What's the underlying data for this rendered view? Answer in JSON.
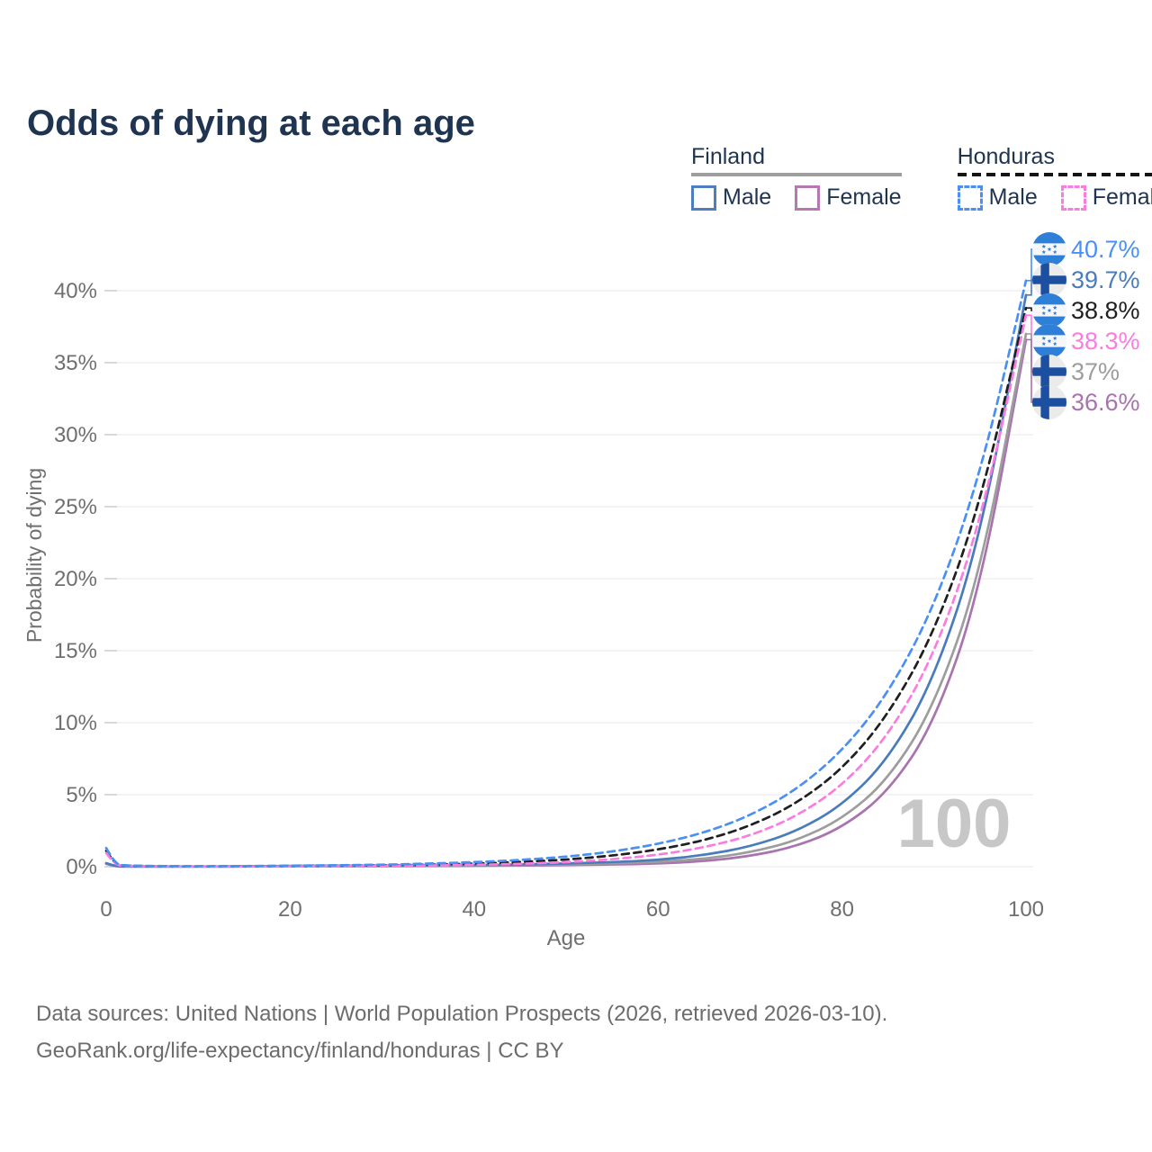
{
  "title": "Odds of dying at each age",
  "legend": {
    "groups": [
      {
        "name": "Finland",
        "line_style": "solid",
        "underline_color": "#9e9e9e",
        "items": [
          {
            "label": "Male",
            "color": "#4d7fbe"
          },
          {
            "label": "Female",
            "color": "#b678b2"
          }
        ]
      },
      {
        "name": "Honduras",
        "line_style": "dashed",
        "underline_color": "#141414",
        "items": [
          {
            "label": "Male",
            "color": "#4a90f4"
          },
          {
            "label": "Female",
            "color": "#fb7ce0"
          }
        ]
      }
    ]
  },
  "chart_data": {
    "type": "line",
    "title": "Odds of dying at each age",
    "xlabel": "Age",
    "ylabel": "Probability of dying",
    "xlim": [
      0,
      100
    ],
    "ylim": [
      0,
      42
    ],
    "x_ticks": [
      0,
      20,
      40,
      60,
      80,
      100
    ],
    "y_ticks": [
      0,
      5,
      10,
      15,
      20,
      25,
      30,
      35,
      40
    ],
    "y_tick_suffix": "%",
    "grid": "horizontal",
    "age_watermark": "100",
    "series": [
      {
        "name": "Honduras Male",
        "country": "honduras",
        "sex": "male",
        "color": "#4a90f4",
        "dashed": true,
        "end_label": "40.7%",
        "flag": "honduras",
        "points": [
          [
            0,
            1.3
          ],
          [
            1,
            0.16
          ],
          [
            2,
            0.09
          ],
          [
            3,
            0.07
          ],
          [
            5,
            0.05
          ],
          [
            10,
            0.03
          ],
          [
            15,
            0.04
          ],
          [
            20,
            0.07
          ],
          [
            25,
            0.1
          ],
          [
            30,
            0.14
          ],
          [
            35,
            0.21
          ],
          [
            40,
            0.31
          ],
          [
            45,
            0.46
          ],
          [
            50,
            0.69
          ],
          [
            55,
            1.04
          ],
          [
            60,
            1.57
          ],
          [
            65,
            2.35
          ],
          [
            70,
            3.54
          ],
          [
            75,
            5.32
          ],
          [
            80,
            8.0
          ],
          [
            85,
            12.0
          ],
          [
            90,
            18.0
          ],
          [
            95,
            27.1
          ],
          [
            100,
            40.7
          ]
        ]
      },
      {
        "name": "Finland Male",
        "country": "finland",
        "sex": "male",
        "color": "#4a7cbc",
        "dashed": false,
        "end_label": "39.7%",
        "flag": "finland",
        "points": [
          [
            0,
            0.25
          ],
          [
            1,
            0.03
          ],
          [
            2,
            0.02
          ],
          [
            3,
            0.01
          ],
          [
            5,
            0.01
          ],
          [
            10,
            0.01
          ],
          [
            15,
            0.02
          ],
          [
            20,
            0.05
          ],
          [
            25,
            0.07
          ],
          [
            30,
            0.08
          ],
          [
            35,
            0.1
          ],
          [
            40,
            0.12
          ],
          [
            45,
            0.16
          ],
          [
            50,
            0.22
          ],
          [
            55,
            0.32
          ],
          [
            60,
            0.46
          ],
          [
            65,
            0.8
          ],
          [
            70,
            1.39
          ],
          [
            75,
            2.43
          ],
          [
            80,
            4.25
          ],
          [
            85,
            7.43
          ],
          [
            90,
            13.0
          ],
          [
            95,
            22.7
          ],
          [
            100,
            39.7
          ]
        ]
      },
      {
        "name": "Honduras Both sexes",
        "country": "honduras",
        "sex": "both",
        "color": "#1f1f1f",
        "dashed": true,
        "end_label": "38.8%",
        "flag": "honduras",
        "points": [
          [
            0,
            1.1
          ],
          [
            1,
            0.13
          ],
          [
            2,
            0.08
          ],
          [
            3,
            0.06
          ],
          [
            5,
            0.04
          ],
          [
            10,
            0.02
          ],
          [
            15,
            0.03
          ],
          [
            20,
            0.05
          ],
          [
            25,
            0.07
          ],
          [
            30,
            0.1
          ],
          [
            35,
            0.14
          ],
          [
            40,
            0.21
          ],
          [
            45,
            0.32
          ],
          [
            50,
            0.49
          ],
          [
            55,
            0.76
          ],
          [
            60,
            1.18
          ],
          [
            65,
            1.82
          ],
          [
            70,
            2.82
          ],
          [
            75,
            4.36
          ],
          [
            80,
            6.75
          ],
          [
            85,
            10.5
          ],
          [
            90,
            16.2
          ],
          [
            95,
            25.1
          ],
          [
            100,
            38.8
          ]
        ]
      },
      {
        "name": "Honduras Female",
        "country": "honduras",
        "sex": "female",
        "color": "#fb7ce0",
        "dashed": true,
        "end_label": "38.3%",
        "flag": "honduras",
        "points": [
          [
            0,
            0.95
          ],
          [
            1,
            0.11
          ],
          [
            2,
            0.06
          ],
          [
            3,
            0.05
          ],
          [
            5,
            0.03
          ],
          [
            10,
            0.02
          ],
          [
            15,
            0.02
          ],
          [
            20,
            0.03
          ],
          [
            25,
            0.05
          ],
          [
            30,
            0.07
          ],
          [
            35,
            0.09
          ],
          [
            40,
            0.13
          ],
          [
            45,
            0.2
          ],
          [
            50,
            0.31
          ],
          [
            55,
            0.51
          ],
          [
            60,
            0.82
          ],
          [
            65,
            1.33
          ],
          [
            70,
            2.14
          ],
          [
            75,
            3.47
          ],
          [
            80,
            5.6
          ],
          [
            85,
            9.06
          ],
          [
            90,
            14.65
          ],
          [
            95,
            23.7
          ],
          [
            100,
            38.3
          ]
        ]
      },
      {
        "name": "Finland Both sexes",
        "country": "finland",
        "sex": "both",
        "color": "#9d9d9d",
        "dashed": false,
        "end_label": "37%",
        "flag": "finland",
        "points": [
          [
            0,
            0.22
          ],
          [
            1,
            0.02
          ],
          [
            2,
            0.01
          ],
          [
            3,
            0.01
          ],
          [
            5,
            0.01
          ],
          [
            10,
            0.01
          ],
          [
            15,
            0.02
          ],
          [
            20,
            0.03
          ],
          [
            25,
            0.04
          ],
          [
            30,
            0.05
          ],
          [
            35,
            0.07
          ],
          [
            40,
            0.09
          ],
          [
            45,
            0.12
          ],
          [
            50,
            0.16
          ],
          [
            55,
            0.23
          ],
          [
            60,
            0.33
          ],
          [
            65,
            0.54
          ],
          [
            70,
            0.99
          ],
          [
            75,
            1.8
          ],
          [
            80,
            3.3
          ],
          [
            85,
            6.03
          ],
          [
            90,
            11.1
          ],
          [
            95,
            20.2
          ],
          [
            100,
            37.0
          ]
        ]
      },
      {
        "name": "Finland Female",
        "country": "finland",
        "sex": "female",
        "color": "#a873ae",
        "dashed": false,
        "end_label": "36.6%",
        "flag": "finland",
        "points": [
          [
            0,
            0.2
          ],
          [
            1,
            0.02
          ],
          [
            2,
            0.01
          ],
          [
            3,
            0.01
          ],
          [
            5,
            0.01
          ],
          [
            10,
            0.01
          ],
          [
            15,
            0.01
          ],
          [
            20,
            0.02
          ],
          [
            25,
            0.03
          ],
          [
            30,
            0.03
          ],
          [
            35,
            0.04
          ],
          [
            40,
            0.06
          ],
          [
            45,
            0.08
          ],
          [
            50,
            0.11
          ],
          [
            55,
            0.15
          ],
          [
            60,
            0.21
          ],
          [
            65,
            0.38
          ],
          [
            70,
            0.73
          ],
          [
            75,
            1.4
          ],
          [
            80,
            2.7
          ],
          [
            85,
            5.17
          ],
          [
            90,
            9.92
          ],
          [
            95,
            19.1
          ],
          [
            100,
            36.6
          ]
        ]
      }
    ]
  },
  "footer": {
    "line1": "Data sources: United Nations | World Population Prospects (2026, retrieved 2026-03-10).",
    "line2": "GeoRank.org/life-expectancy/finland/honduras | CC BY"
  }
}
